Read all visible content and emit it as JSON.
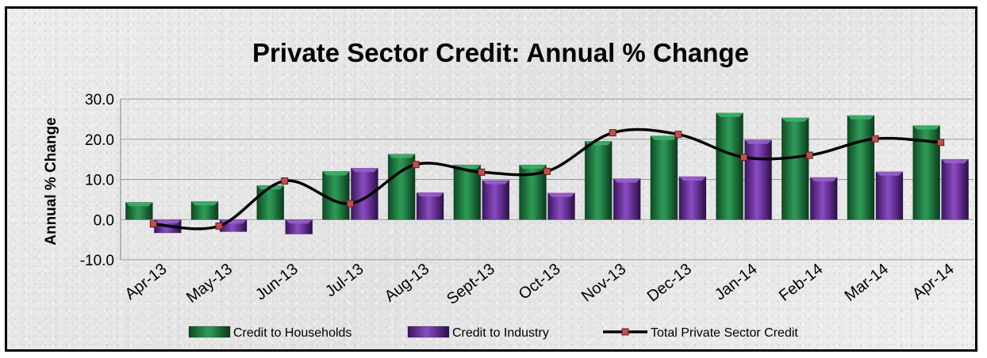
{
  "chart_data": {
    "type": "bar",
    "title": "Private Sector Credit: Annual % Change",
    "ylabel": "Annual % Change",
    "xlabel": "",
    "ylim": [
      -10,
      30
    ],
    "yticks": [
      "-10.0",
      "0.0",
      "10.0",
      "20.0",
      "30.0"
    ],
    "grid": true,
    "legend_position": "bottom",
    "categories": [
      "Apr-13",
      "May-13",
      "Jun-13",
      "Jul-13",
      "Aug-13",
      "Sept-13",
      "Oct-13",
      "Nov-13",
      "Dec-13",
      "Jan-14",
      "Feb-14",
      "Mar-14",
      "Apr-14"
    ],
    "series": [
      {
        "name": "Credit to Households",
        "kind": "bar",
        "color": "#1f7a3f",
        "values": [
          4.3,
          4.5,
          8.5,
          12.0,
          16.3,
          13.6,
          13.6,
          19.5,
          20.8,
          26.5,
          25.3,
          25.9,
          23.4
        ]
      },
      {
        "name": "Credit to Industry",
        "kind": "bar",
        "color": "#6a2d9a",
        "values": [
          -3.3,
          -3.0,
          -3.6,
          12.8,
          6.7,
          9.8,
          6.6,
          10.2,
          10.7,
          19.8,
          10.5,
          11.9,
          15.0
        ]
      },
      {
        "name": "Total Private Sector Credit",
        "kind": "line",
        "color": "#000000",
        "marker_color": "#c0504d",
        "values": [
          -1.1,
          -1.6,
          9.6,
          4.0,
          13.7,
          11.8,
          12.0,
          21.6,
          21.2,
          15.5,
          16.0,
          20.1,
          19.2
        ]
      }
    ]
  }
}
